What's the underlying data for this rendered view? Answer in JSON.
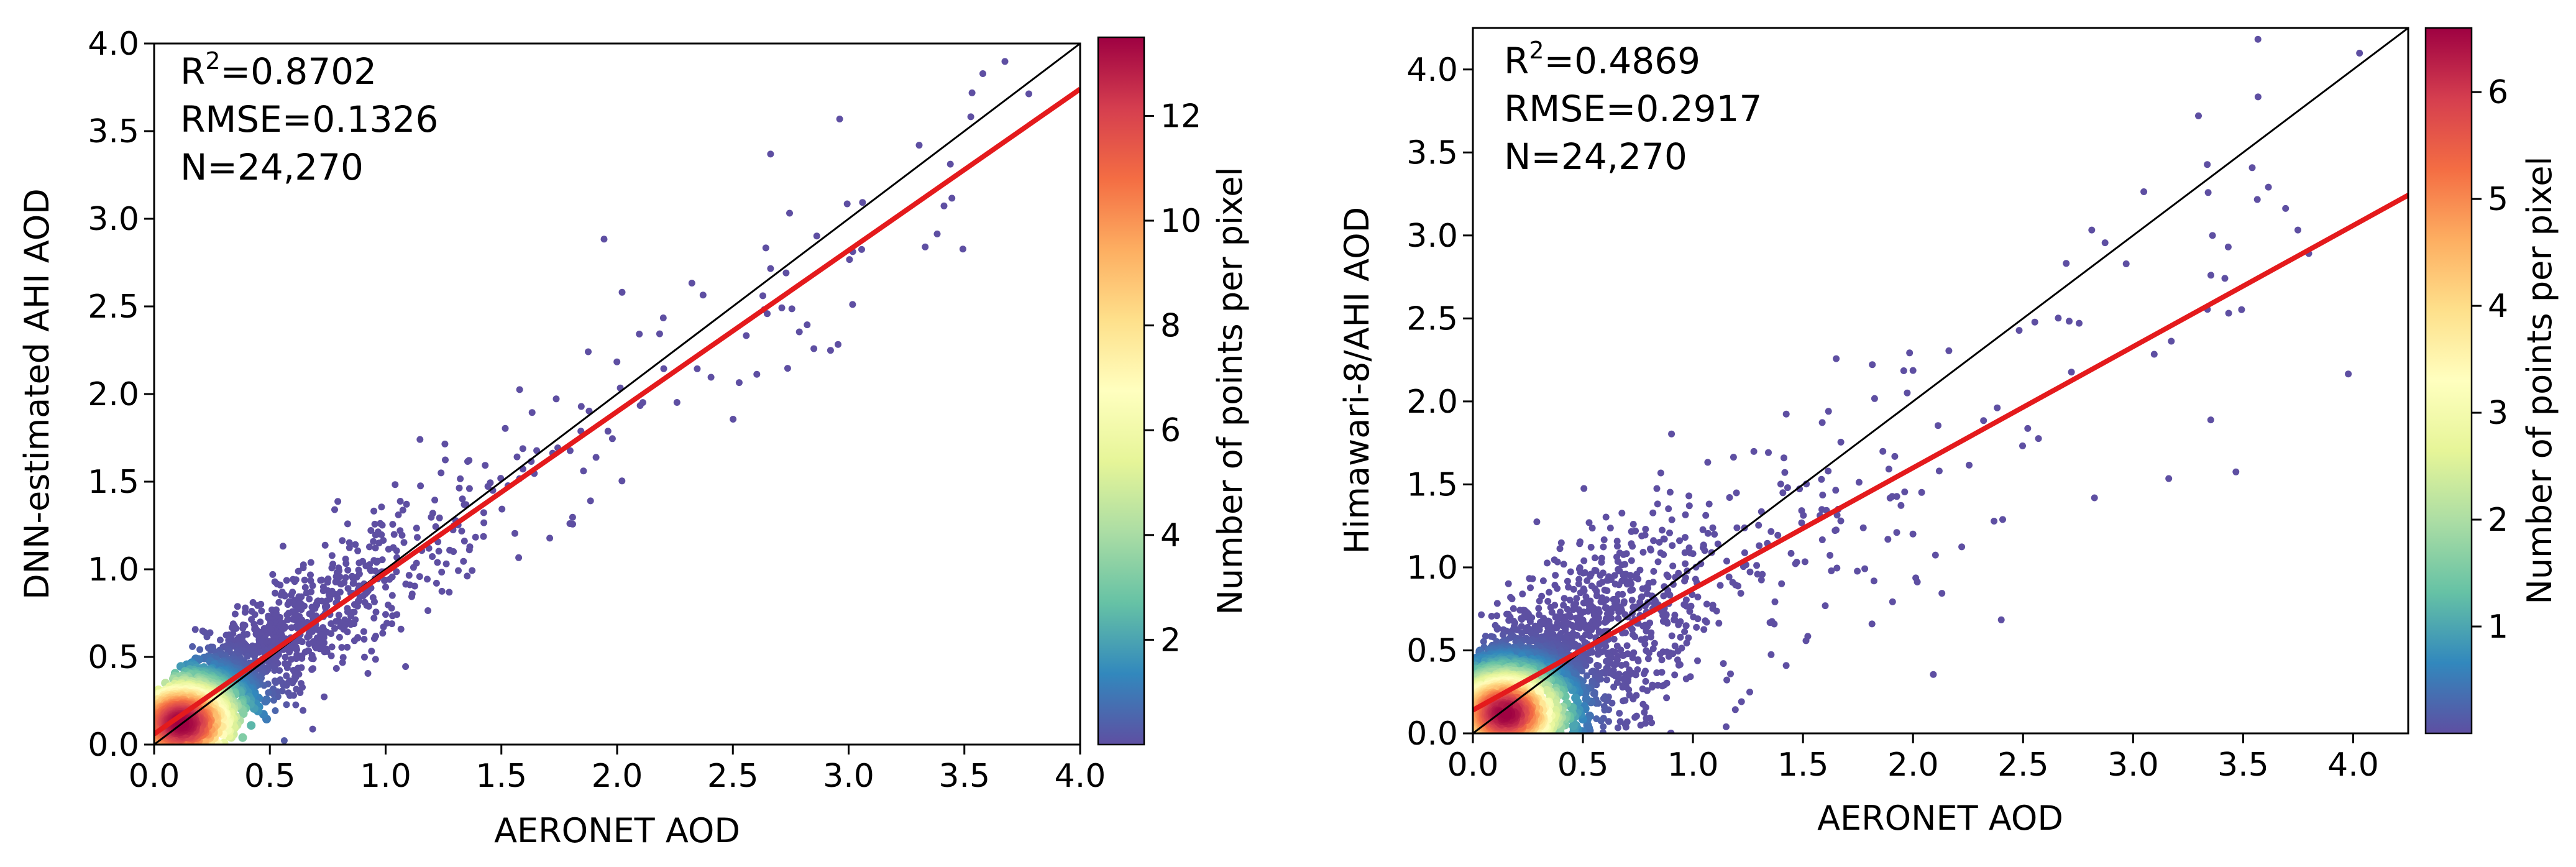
{
  "chart_data": [
    {
      "type": "scatter",
      "subtype": "density-scatter",
      "title": "",
      "xlabel": "AERONET AOD",
      "ylabel": "DNN-estimated AHI AOD",
      "xlim": [
        0,
        4.0
      ],
      "ylim": [
        0,
        4.0
      ],
      "x_ticks": [
        0.0,
        0.5,
        1.0,
        1.5,
        2.0,
        2.5,
        3.0,
        3.5,
        4.0
      ],
      "x_tick_labels": [
        "0.0",
        "0.5",
        "1.0",
        "1.5",
        "2.0",
        "2.5",
        "3.0",
        "3.5",
        "4.0"
      ],
      "y_ticks": [
        0.0,
        0.5,
        1.0,
        1.5,
        2.0,
        2.5,
        3.0,
        3.5,
        4.0
      ],
      "y_tick_labels": [
        "0.0",
        "0.5",
        "1.0",
        "1.5",
        "2.0",
        "2.5",
        "3.0",
        "3.5",
        "4.0"
      ],
      "stats": {
        "r2_prefix": "R",
        "r2_sup": "2",
        "r2_value": "=0.8702",
        "rmse": "RMSE=0.1326",
        "n": "N=24,270"
      },
      "one_to_one_line": {
        "slope": 1,
        "intercept": 0
      },
      "fit_line": {
        "slope": 0.92,
        "intercept": 0.06
      },
      "point_cloud": {
        "slope": 0.92,
        "intercept": 0.06,
        "spread": 0.16,
        "core_x": 0.12,
        "core_y": 0.12,
        "count": 2600
      },
      "colorbar": {
        "label": "Number of points per pixel",
        "min": 0,
        "max": 13.5,
        "ticks": [
          2,
          4,
          6,
          8,
          10,
          12
        ],
        "tick_labels": [
          "2",
          "4",
          "6",
          "8",
          "10",
          "12"
        ]
      }
    },
    {
      "type": "scatter",
      "subtype": "density-scatter",
      "title": "",
      "xlabel": "AERONET AOD",
      "ylabel": "Himawari-8/AHI AOD",
      "xlim": [
        0,
        4.25
      ],
      "ylim": [
        0,
        4.25
      ],
      "x_ticks": [
        0.0,
        0.5,
        1.0,
        1.5,
        2.0,
        2.5,
        3.0,
        3.5,
        4.0
      ],
      "x_tick_labels": [
        "0.0",
        "0.5",
        "1.0",
        "1.5",
        "2.0",
        "2.5",
        "3.0",
        "3.5",
        "4.0"
      ],
      "y_ticks": [
        0.0,
        0.5,
        1.0,
        1.5,
        2.0,
        2.5,
        3.0,
        3.5,
        4.0
      ],
      "y_tick_labels": [
        "0.0",
        "0.5",
        "1.0",
        "1.5",
        "2.0",
        "2.5",
        "3.0",
        "3.5",
        "4.0"
      ],
      "stats": {
        "r2_prefix": "R",
        "r2_sup": "2",
        "r2_value": "=0.4869",
        "rmse": "RMSE=0.2917",
        "n": "N=24,270"
      },
      "one_to_one_line": {
        "slope": 1,
        "intercept": 0
      },
      "fit_line": {
        "slope": 0.73,
        "intercept": 0.14
      },
      "point_cloud": {
        "slope": 0.73,
        "intercept": 0.14,
        "spread": 0.32,
        "core_x": 0.15,
        "core_y": 0.12,
        "count": 2600
      },
      "colorbar": {
        "label": "Number of points per pixel",
        "min": 0,
        "max": 6.6,
        "ticks": [
          1,
          2,
          3,
          4,
          5,
          6
        ],
        "tick_labels": [
          "1",
          "2",
          "3",
          "4",
          "5",
          "6"
        ]
      }
    }
  ],
  "colors": {
    "scatter_outer": "#5e4fa2",
    "fit_line": "#e41a1c",
    "one_to_one_line": "#000000",
    "spectral_r": [
      "#5e4fa2",
      "#3288bd",
      "#66c2a5",
      "#abdda4",
      "#e6f598",
      "#ffffbf",
      "#fee08b",
      "#fdae61",
      "#f46d43",
      "#d53e4f",
      "#9e0142"
    ]
  }
}
